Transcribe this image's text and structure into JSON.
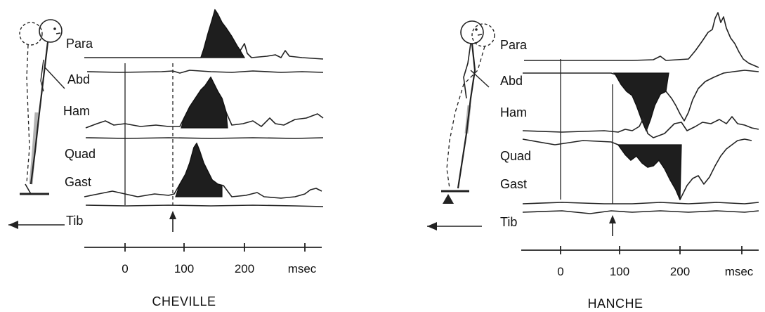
{
  "panels": [
    {
      "id": "cheville",
      "caption": "CHEVILLE",
      "muscles": [
        "Para",
        "Abd",
        "Ham",
        "Quad",
        "Gast",
        "Tib"
      ],
      "axis": {
        "ticks": [
          "0",
          "100",
          "200"
        ],
        "unit": "msec"
      }
    },
    {
      "id": "hanche",
      "caption": "HANCHE",
      "muscles": [
        "Para",
        "Abd",
        "Ham",
        "Quad",
        "Gast",
        "Tib"
      ],
      "axis": {
        "ticks": [
          "0",
          "100",
          "200"
        ],
        "unit": "msec"
      }
    }
  ],
  "colors": {
    "ink": "#1e1e1e",
    "background": "#ffffff"
  },
  "icons": [
    "stick-figure-ankle-strategy",
    "stick-figure-hip-strategy",
    "platform-direction-arrow",
    "perturbation-onset-arrow"
  ]
}
